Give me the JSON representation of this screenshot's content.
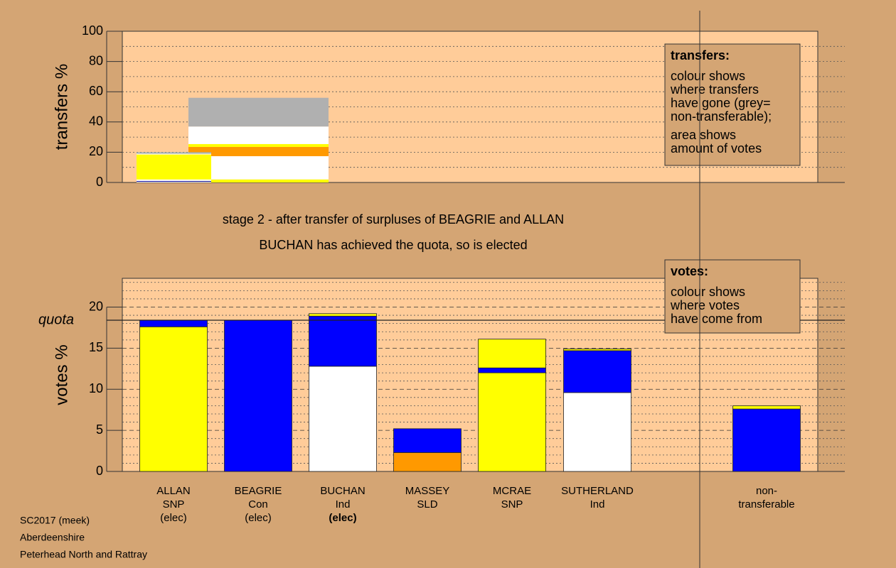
{
  "chart_data": [
    {
      "type": "stacked-bar",
      "ylabel": "transfers %",
      "ylim": [
        0,
        100
      ],
      "yticks": [
        0,
        20,
        40,
        60,
        80,
        100
      ],
      "legend": {
        "title": "transfers:",
        "paragraphs": [
          [
            "colour shows",
            "where transfers",
            "have gone (grey=",
            "non-transferable);"
          ],
          [
            "area shows",
            "amount of votes"
          ]
        ]
      },
      "bars": [
        {
          "segments": [
            {
              "color": "#ffffff",
              "value": 0.5
            },
            {
              "color": "#000099",
              "value": 0.5
            },
            {
              "color": "#ffffff",
              "value": 1
            },
            {
              "color": "#ffff00",
              "value": 16.5
            },
            {
              "color": "#ffffff",
              "value": 0.5
            },
            {
              "color": "#a8b4b4",
              "value": 1
            }
          ]
        },
        {
          "segments": [
            {
              "color": "#ffff00",
              "value": 2
            },
            {
              "color": "#ffffff",
              "value": 15.4
            },
            {
              "color": "#ff9900",
              "value": 6.1
            },
            {
              "color": "#ffff00",
              "value": 1.9
            },
            {
              "color": "#ffffff",
              "value": 11.6
            },
            {
              "color": "#b0b0b0",
              "value": 19
            }
          ]
        }
      ]
    },
    {
      "type": "stacked-bar",
      "ylabel": "votes %",
      "ylim": [
        0,
        23.5
      ],
      "yticks": [
        0,
        5,
        10,
        15,
        20
      ],
      "quota": {
        "label": "quota",
        "value": 18.4
      },
      "legend": {
        "title": "votes:",
        "paragraphs": [
          [
            "colour shows",
            "where votes",
            "have come from"
          ]
        ]
      },
      "bold_category": 2,
      "categories": [
        [
          "ALLAN",
          "SNP",
          "(elec)"
        ],
        [
          "BEAGRIE",
          "Con",
          "(elec)"
        ],
        [
          "BUCHAN",
          "Ind",
          "(elec)"
        ],
        [
          "MASSEY",
          "SLD"
        ],
        [
          "MCRAE",
          "SNP"
        ],
        [
          "SUTHERLAND",
          "Ind"
        ],
        [
          "non-",
          "transferable"
        ]
      ],
      "bars": [
        {
          "segments": [
            {
              "color": "#ffff00",
              "value": 17.6
            },
            {
              "color": "#0000ff",
              "value": 0.8
            }
          ]
        },
        {
          "segments": [
            {
              "color": "#0000ff",
              "value": 18.4
            }
          ]
        },
        {
          "segments": [
            {
              "color": "#ffffff",
              "value": 12.8
            },
            {
              "color": "#0000ff",
              "value": 6.1
            },
            {
              "color": "#ffff00",
              "value": 0.3
            }
          ]
        },
        {
          "segments": [
            {
              "color": "#ff9900",
              "value": 2.3
            },
            {
              "color": "#0000ff",
              "value": 2.9
            }
          ]
        },
        {
          "segments": [
            {
              "color": "#ffff00",
              "value": 12.0
            },
            {
              "color": "#0000ff",
              "value": 0.6
            },
            {
              "color": "#ffff00",
              "value": 3.5
            }
          ]
        },
        {
          "segments": [
            {
              "color": "#ffffff",
              "value": 9.6
            },
            {
              "color": "#0000ff",
              "value": 5.1
            },
            {
              "color": "#ffff00",
              "value": 0.2
            }
          ]
        },
        {
          "segments": [
            {
              "color": "#0000ff",
              "value": 7.6
            },
            {
              "color": "#ffff00",
              "value": 0.4
            }
          ]
        }
      ]
    }
  ],
  "stage": [
    "stage 2 - after transfer of surpluses of BEAGRIE and ALLAN",
    "BUCHAN has achieved the quota, so is elected"
  ],
  "footer": [
    "SC2017 (meek)",
    "Aberdeenshire",
    "Peterhead North and Rattray"
  ]
}
